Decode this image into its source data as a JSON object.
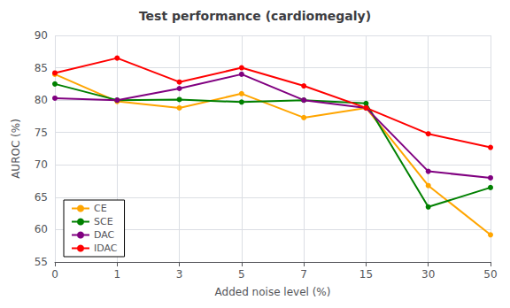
{
  "chart_data": {
    "type": "line",
    "title": "Test performance (cardiomegaly)",
    "x_label": "Added noise level (%)",
    "y_label": "AUROC (%)",
    "categories": [
      "0",
      "1",
      "3",
      "5",
      "7",
      "15",
      "30",
      "50"
    ],
    "series": [
      {
        "name": "CE",
        "color": "#FFA500",
        "values": [
          84.0,
          79.8,
          78.8,
          81.0,
          77.3,
          78.8,
          66.8,
          59.2
        ]
      },
      {
        "name": "SCE",
        "color": "#008000",
        "values": [
          82.5,
          80.0,
          80.1,
          79.7,
          80.0,
          79.5,
          63.5,
          66.5
        ]
      },
      {
        "name": "DAC",
        "color": "#800080",
        "values": [
          80.3,
          80.0,
          81.8,
          84.0,
          80.0,
          78.8,
          69.0,
          68.0
        ]
      },
      {
        "name": "IDAC",
        "color": "#FF0000",
        "values": [
          84.2,
          86.5,
          82.8,
          85.0,
          82.2,
          78.8,
          74.8,
          72.7
        ]
      }
    ],
    "ylim": [
      55,
      90
    ],
    "yticks": [
      55,
      60,
      65,
      70,
      75,
      80,
      85,
      90
    ],
    "grid": true,
    "legend": "lower left",
    "marker": "circle"
  }
}
